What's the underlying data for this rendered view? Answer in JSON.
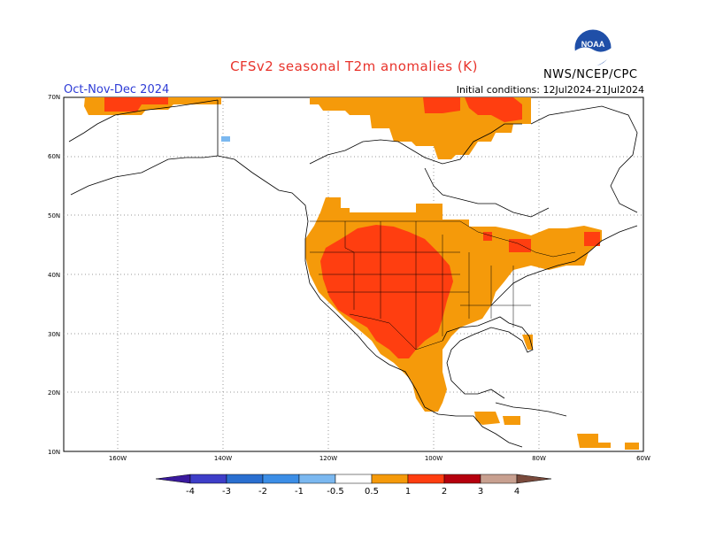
{
  "header": {
    "title": "CFSv2 seasonal T2m anomalies (K)",
    "period": "Oct-Nov-Dec 2024",
    "initial_conditions": "Initial conditions: 12Jul2024-21Jul2024",
    "agency": "NWS/NCEP/CPC",
    "logo_text": "NOAA"
  },
  "axes": {
    "lat_labels": [
      "70N",
      "60N",
      "50N",
      "40N",
      "30N",
      "20N",
      "10N"
    ],
    "lon_labels": [
      "160W",
      "140W",
      "120W",
      "100W",
      "80W",
      "60W"
    ]
  },
  "colorbar": {
    "labels": [
      "-4",
      "-3",
      "-2",
      "-1",
      "-0.5",
      "0.5",
      "1",
      "2",
      "3",
      "4"
    ],
    "colors": [
      "#3a1a9e",
      "#3e3ec8",
      "#2a6fd0",
      "#3c8ee6",
      "#7bb8f0",
      "#ffffff",
      "#f59a0a",
      "#ff3e10",
      "#b5000e",
      "#c8a090",
      "#7a4a3c"
    ]
  },
  "legend_colors": {
    "warm_0_5_1": "#f59a0a",
    "warm_1_2": "#ff3e10",
    "cool_0_5_1": "#7bb8f0"
  }
}
